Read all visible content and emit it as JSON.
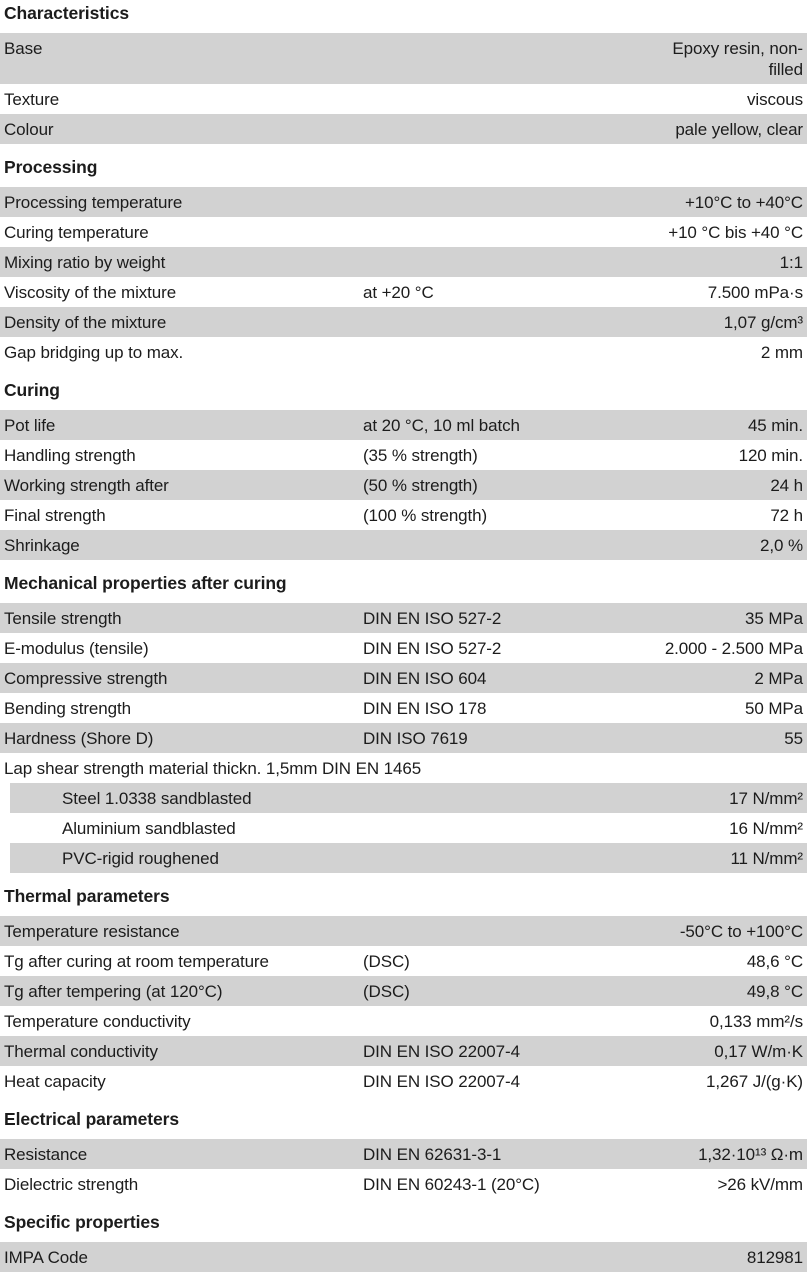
{
  "document": {
    "text_color": "#1c1c1c",
    "row_shade_color": "#d2d2d2",
    "sections": [
      {
        "title": "Characteristics",
        "rows": [
          {
            "label": "Base",
            "mid": "",
            "value": "Epoxy resin, non-\nfilled",
            "multiline": true
          },
          {
            "label": "Texture",
            "mid": "",
            "value": "viscous"
          },
          {
            "label": "Colour",
            "mid": "",
            "value": "pale yellow, clear"
          }
        ]
      },
      {
        "title": "Processing",
        "rows": [
          {
            "label": "Processing temperature",
            "mid": "",
            "value": "+10°C to +40°C"
          },
          {
            "label": "Curing temperature",
            "mid": "",
            "value": "+10 °C bis +40 °C"
          },
          {
            "label": "Mixing ratio by weight",
            "mid": "",
            "value": "1:1"
          },
          {
            "label": "Viscosity of the mixture",
            "mid": "at +20 °C",
            "value": "7.500 mPa·s"
          },
          {
            "label": "Density of the mixture",
            "mid": "",
            "value": "1,07 g/cm³"
          },
          {
            "label": "Gap bridging up to max.",
            "mid": "",
            "value": "2 mm"
          }
        ]
      },
      {
        "title": "Curing",
        "rows": [
          {
            "label": "Pot life",
            "mid": "at 20 °C, 10 ml batch",
            "value": "45 min."
          },
          {
            "label": "Handling strength",
            "mid": "(35 % strength)",
            "value": "120 min."
          },
          {
            "label": "Working strength after",
            "mid": "(50 % strength)",
            "value": "24 h"
          },
          {
            "label": "Final strength",
            "mid": "(100 % strength)",
            "value": "72 h"
          },
          {
            "label": "Shrinkage",
            "mid": "",
            "value": "2,0 %"
          }
        ]
      },
      {
        "title": "Mechanical properties after curing",
        "rows": [
          {
            "label": "Tensile strength",
            "mid": "DIN EN ISO 527-2",
            "value": "35 MPa"
          },
          {
            "label": "E-modulus (tensile)",
            "mid": "DIN EN ISO 527-2",
            "value": "2.000 - 2.500 MPa"
          },
          {
            "label": "Compressive strength",
            "mid": "DIN EN ISO 604",
            "value": "2 MPa"
          },
          {
            "label": "Bending strength",
            "mid": "DIN EN ISO 178",
            "value": "50 MPa"
          },
          {
            "label": "Hardness (Shore D)",
            "mid": "DIN ISO 7619",
            "value": "55"
          },
          {
            "label": "Lap shear strength material thickn. 1,5mm DIN EN 1465",
            "mid": "",
            "value": ""
          },
          {
            "label": "Steel 1.0338 sandblasted",
            "mid": "",
            "value": "17 N/mm²",
            "indent": true
          },
          {
            "label": "Aluminium sandblasted",
            "mid": "",
            "value": "16 N/mm²",
            "indent": true
          },
          {
            "label": "PVC-rigid roughened",
            "mid": "",
            "value": "11 N/mm²",
            "indent": true
          }
        ]
      },
      {
        "title": "Thermal parameters",
        "rows": [
          {
            "label": "Temperature resistance",
            "mid": "",
            "value": "-50°C to +100°C"
          },
          {
            "label": "Tg after curing at room temperature",
            "mid": "(DSC)",
            "value": "48,6 °C"
          },
          {
            "label": "Tg after tempering (at 120°C)",
            "mid": "(DSC)",
            "value": "49,8 °C"
          },
          {
            "label": "Temperature conductivity",
            "mid": "",
            "value": "0,133 mm²/s"
          },
          {
            "label": "Thermal conductivity",
            "mid": "DIN EN ISO 22007-4",
            "value": "0,17 W/m·K"
          },
          {
            "label": "Heat capacity",
            "mid": "DIN EN ISO 22007-4",
            "value": "1,267 J/(g·K)"
          }
        ]
      },
      {
        "title": "Electrical parameters",
        "rows": [
          {
            "label": "Resistance",
            "mid": "DIN EN 62631-3-1",
            "value": "1,32·10¹³ Ω·m"
          },
          {
            "label": "Dielectric strength",
            "mid": "DIN EN 60243-1 (20°C)",
            "value": ">26 kV/mm"
          }
        ]
      },
      {
        "title": "Specific properties",
        "rows": [
          {
            "label": "IMPA Code",
            "mid": "",
            "value": "812981"
          }
        ]
      }
    ]
  }
}
